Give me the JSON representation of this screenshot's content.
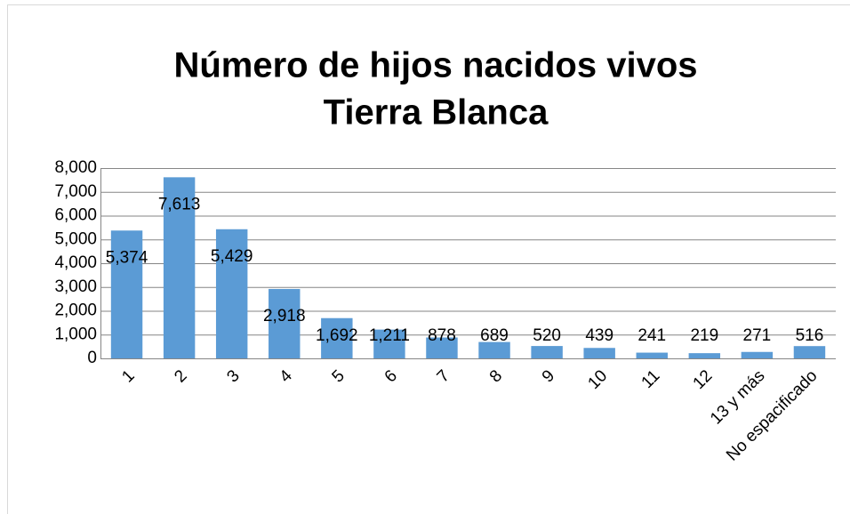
{
  "chart_data": {
    "type": "bar",
    "title": [
      "Número de hijos nacidos vivos",
      "Tierra Blanca"
    ],
    "categories": [
      "1",
      "2",
      "3",
      "4",
      "5",
      "6",
      "7",
      "8",
      "9",
      "10",
      "11",
      "12",
      "13 y más",
      "No espacificado"
    ],
    "values": [
      5374,
      7613,
      5429,
      2918,
      1692,
      1211,
      878,
      689,
      520,
      439,
      241,
      219,
      271,
      516
    ],
    "value_labels": [
      "5,374",
      "7,613",
      "5,429",
      "2,918",
      "1,692",
      "1,211",
      "878",
      "689",
      "520",
      "439",
      "241",
      "219",
      "271",
      "516"
    ],
    "color": "#5b9bd5",
    "ylim": [
      0,
      8000
    ],
    "yticks": [
      0,
      {
        "value": 1000,
        "label": "1,000"
      },
      {
        "value": 2000,
        "label": "2,000"
      },
      {
        "value": 3000,
        "label": "3,000"
      },
      {
        "value": 4000,
        "label": "4,000"
      },
      {
        "value": 5000,
        "label": "5,000"
      },
      {
        "value": 6000,
        "label": "6,000"
      },
      {
        "value": 7000,
        "label": "7,000"
      },
      {
        "value": 8000,
        "label": "8,000"
      }
    ],
    "grid": true
  }
}
